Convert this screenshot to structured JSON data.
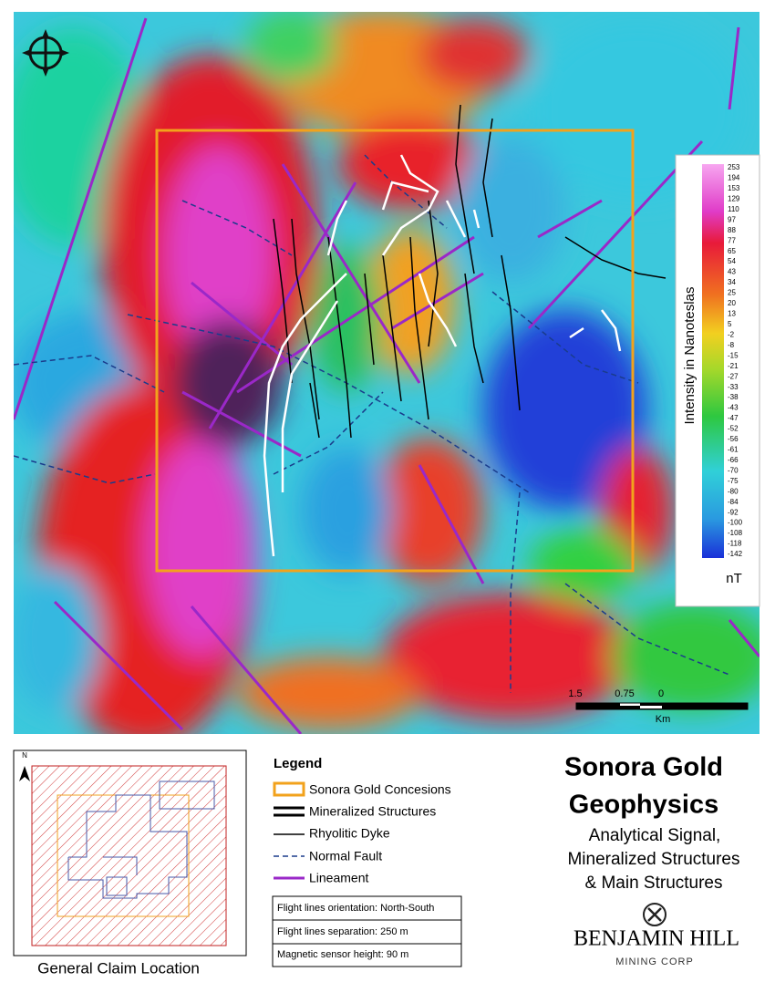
{
  "map": {
    "colorbar": {
      "title": "Intensity in Nanoteslas",
      "unit": "nT",
      "labels": [
        253,
        194,
        153,
        129,
        110,
        97,
        88,
        77,
        65,
        54,
        43,
        34,
        25,
        20,
        13,
        5,
        -2,
        -8,
        -15,
        -21,
        -27,
        -33,
        -38,
        -43,
        -47,
        -52,
        -56,
        -61,
        -66,
        -70,
        -75,
        -80,
        -84,
        -92,
        -100,
        -108,
        -118,
        -142
      ]
    },
    "scale_bar": {
      "labels": [
        "1.5",
        "0.75",
        "0"
      ],
      "unit": "Km"
    }
  },
  "legend": {
    "title": "Legend",
    "items": [
      "Sonora Gold Concesions",
      "Mineralized Structures",
      "Rhyolitic Dyke",
      "Normal Fault",
      "Lineament"
    ],
    "notes": [
      "Flight lines orientation:  North-South",
      "Flight lines separation:  250 m",
      "Magnetic sensor height: 90 m"
    ]
  },
  "inset": {
    "north": "N",
    "caption": "General Claim Location"
  },
  "title": {
    "lines": [
      "Sonora Gold",
      "Geophysics"
    ],
    "subtitle": [
      "Analytical Signal,",
      "Mineralized Structures",
      "& Main Structures"
    ]
  },
  "logo": {
    "name": "BENJAMIN HILL",
    "tagline": "MINING CORP"
  }
}
